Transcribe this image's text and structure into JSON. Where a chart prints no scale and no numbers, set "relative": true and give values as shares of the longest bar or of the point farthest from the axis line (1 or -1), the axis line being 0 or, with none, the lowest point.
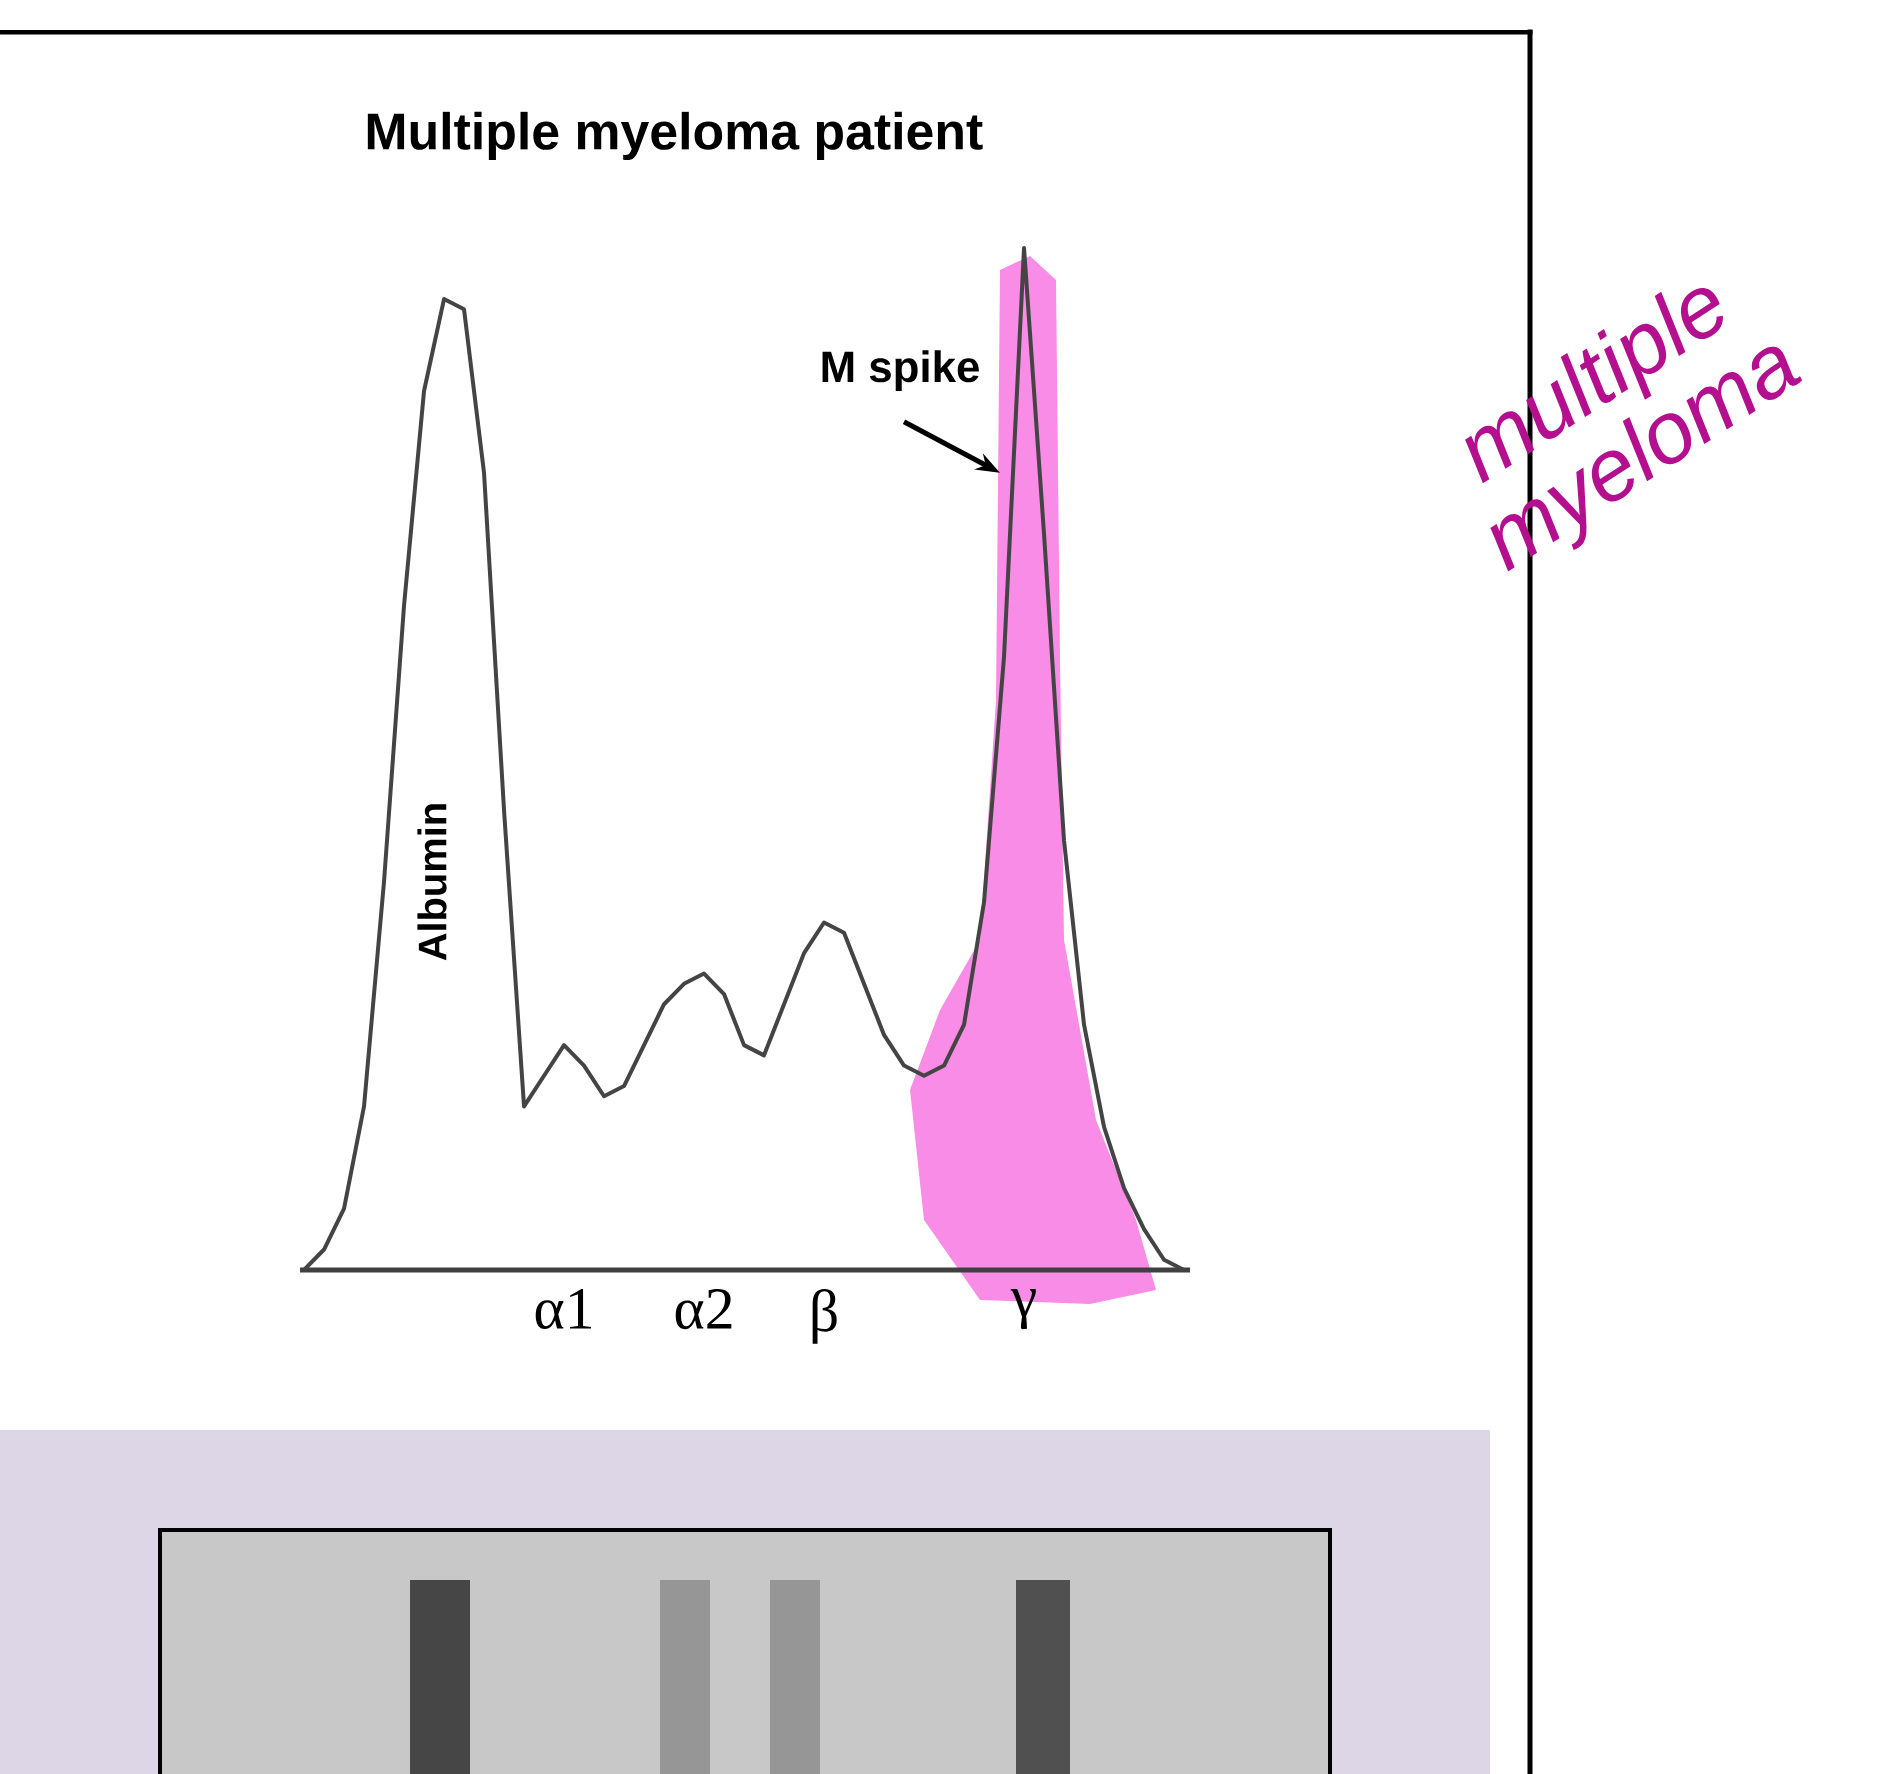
{
  "chart_data": {
    "type": "line",
    "title": "Multiple myeloma patient",
    "relative": true,
    "categories": [
      null,
      null,
      null,
      null,
      null,
      null,
      null,
      null,
      null,
      null,
      null,
      null,
      null,
      "α1",
      null,
      null,
      null,
      null,
      null,
      null,
      "α2",
      null,
      null,
      null,
      null,
      null,
      "β",
      null,
      null,
      null,
      null,
      null,
      null,
      null,
      null,
      null,
      "γ",
      null,
      null,
      null,
      null,
      null,
      null,
      null,
      null
    ],
    "series": [
      {
        "color": "#444444",
        "values": [
          0,
          0.02,
          0.06,
          0.16,
          0.38,
          0.65,
          0.86,
          0.95,
          0.94,
          0.78,
          0.45,
          0.16,
          0.19,
          0.22,
          0.2,
          0.17,
          0.18,
          0.22,
          0.26,
          0.28,
          0.29,
          0.27,
          0.22,
          0.21,
          0.26,
          0.31,
          0.34,
          0.33,
          0.28,
          0.23,
          0.2,
          0.19,
          0.2,
          0.24,
          0.36,
          0.6,
          1.0,
          0.72,
          0.42,
          0.24,
          0.14,
          0.08,
          0.04,
          0.01,
          0
        ]
      }
    ],
    "annotations": [
      "Albumin",
      "M spike",
      "multiple myeloma"
    ]
  }
}
